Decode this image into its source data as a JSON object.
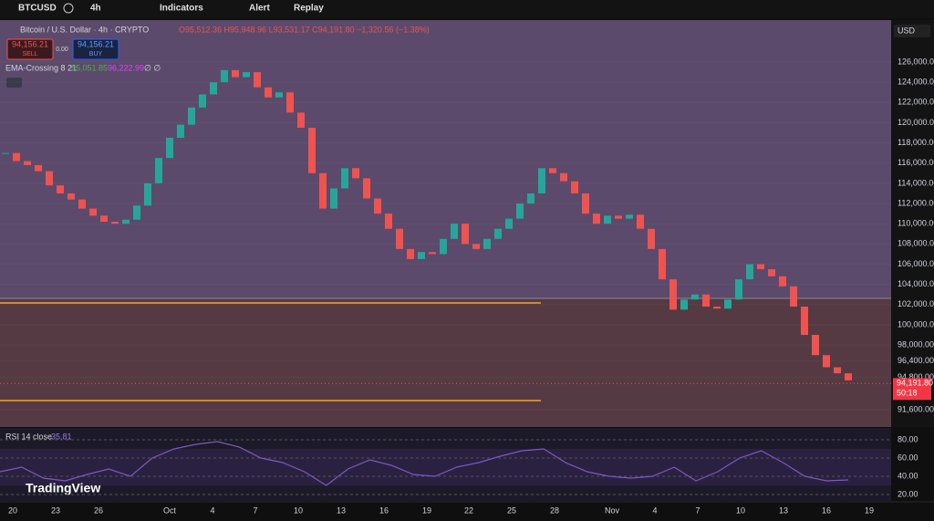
{
  "toolbar": {
    "symbol": "BTCUSD",
    "interval": "4h",
    "indicators": "Indicators",
    "alert": "Alert",
    "replay": "Replay"
  },
  "legend": {
    "title": "Bitcoin / U.S. Dollar · 4h · CRYPTO",
    "ohlc": "O95,512.36 H95,948.96 L93,531.17 C94,191.80 −1,320.56 (−1.38%)",
    "sell_price": "94,156.21",
    "sell": "SELL",
    "spread": "0.00",
    "buy_price": "94,156.21",
    "buy": "BUY",
    "ema": "EMA-Crossing 8 21",
    "ema_fast": "95,051.85",
    "ema_slow": "96,222.99",
    "ema_rest": "∅ ∅"
  },
  "price_axis": {
    "currency": "USD",
    "ticks": [
      {
        "value": 126000,
        "label": "126,000.00"
      },
      {
        "value": 124000,
        "label": "124,000.00"
      },
      {
        "value": 122000,
        "label": "122,000.00"
      },
      {
        "value": 120000,
        "label": "120,000.00"
      },
      {
        "value": 118000,
        "label": "118,000.00"
      },
      {
        "value": 116000,
        "label": "116,000.00"
      },
      {
        "value": 114000,
        "label": "114,000.00"
      },
      {
        "value": 112000,
        "label": "112,000.00"
      },
      {
        "value": 110000,
        "label": "110,000.00"
      },
      {
        "value": 108000,
        "label": "108,000.00"
      },
      {
        "value": 106000,
        "label": "106,000.00"
      },
      {
        "value": 104000,
        "label": "104,000.00"
      },
      {
        "value": 102000,
        "label": "102,000.00"
      },
      {
        "value": 100000,
        "label": "100,000.00"
      },
      {
        "value": 98000,
        "label": "98,000.00"
      },
      {
        "value": 96400,
        "label": "96,400.00"
      },
      {
        "value": 94800,
        "label": "94,800.00"
      },
      {
        "value": 91600,
        "label": "91,600.00"
      }
    ],
    "last_price": {
      "value": 94191.8,
      "label": "94,191.80"
    },
    "countdown": "50:18"
  },
  "candles": {
    "closes": [
      117000,
      116200,
      115800,
      115200,
      113800,
      113000,
      112400,
      111500,
      110800,
      110200,
      110000,
      110400,
      111800,
      114000,
      116500,
      118500,
      119800,
      121500,
      122800,
      124000,
      125200,
      124500,
      125000,
      123500,
      122500,
      123000,
      121000,
      119500,
      115000,
      111500,
      113500,
      115500,
      114500,
      112500,
      111000,
      109500,
      107500,
      106500,
      107200,
      107000,
      108500,
      110000,
      108000,
      107500,
      108500,
      109500,
      110500,
      112000,
      113000,
      115500,
      115000,
      114200,
      113000,
      111000,
      110000,
      110800,
      110500,
      110900,
      109500,
      107500,
      104500,
      101500,
      102500,
      103000,
      101800,
      101600,
      102500,
      104500,
      106000,
      105500,
      104800,
      103800,
      101800,
      99000,
      97000,
      95800,
      95200,
      94500
    ]
  },
  "rsi": {
    "label": "RSI 14 close",
    "current": "35.81",
    "ticks": [
      {
        "value": 80,
        "label": "80.00"
      },
      {
        "value": 60,
        "label": "60.00"
      },
      {
        "value": 40,
        "label": "40.00"
      },
      {
        "value": 20,
        "label": "20.00"
      }
    ],
    "values": [
      45,
      50,
      38,
      35,
      42,
      48,
      40,
      60,
      70,
      75,
      78,
      72,
      60,
      55,
      45,
      30,
      48,
      58,
      52,
      42,
      40,
      50,
      55,
      62,
      68,
      70,
      55,
      45,
      40,
      38,
      40,
      50,
      35,
      45,
      60,
      68,
      55,
      40,
      35,
      36
    ]
  },
  "time_axis": [
    "20",
    "23",
    "26",
    "Oct",
    "4",
    "7",
    "10",
    "13",
    "16",
    "19",
    "22",
    "25",
    "28",
    "Nov",
    "4",
    "7",
    "10",
    "13",
    "16",
    "19"
  ],
  "brand": "TradingView"
}
